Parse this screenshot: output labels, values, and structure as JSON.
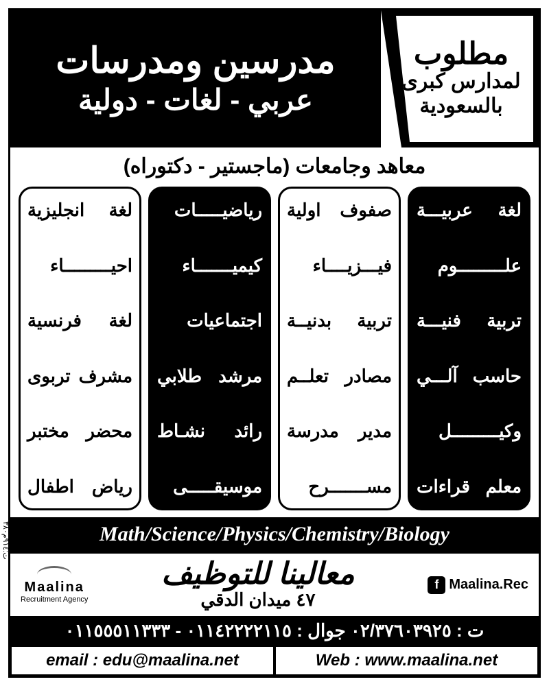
{
  "header": {
    "wanted": "مطلوب",
    "wanted_sub1": "لمدارس كبرى",
    "wanted_sub2": "بالسعودية",
    "teachers": "مدرسين ومدرسات",
    "types": "عربي - لغات - دولية"
  },
  "qualifications": "معاهد وجامعات (ماجستير - دكتوراه)",
  "columns": [
    {
      "style": "black",
      "items": [
        "لغة عربيـــة",
        "علـــــــــوم",
        "تربية فنيـــة",
        "حاسب آلـــي",
        "وكيـــــــــل",
        "معلم قراءات"
      ]
    },
    {
      "style": "white",
      "items": [
        "صفوف اولية",
        "فيـــزيــــاء",
        "تربية بدنيــة",
        "مصادر تعلــم",
        "مدير مدرسة",
        "مســـــــرح"
      ]
    },
    {
      "style": "black",
      "items": [
        "رياضيـــــات",
        "كيميـــــــاء",
        "اجتماعيات",
        "مرشد طلابي",
        "رائد نشـاط",
        "موسيقـــــى"
      ]
    },
    {
      "style": "white",
      "items": [
        "لغة انجليزية",
        "احيـــــــــاء",
        "لغة فرنسية",
        "مشرف تربوى",
        "محضر مختبر",
        "رياض اطفال"
      ]
    }
  ],
  "english_subjects": "Math/Science/Physics/Chemistry/Biology",
  "company": {
    "logo_name": "Maalina",
    "logo_tagline": "Recruitment Agency",
    "arabic_name": "معالينا للتوظيف",
    "address": "٤٧ ميدان الدقي",
    "fb": "Maalina.Rec"
  },
  "phones": "ت : ٠٢/٣٧٦٠٣٩٢٥ جوال : ٠١١٤٢٢٢٢١١٥ - ٠١١٥٥٥١١٣٣٣",
  "contacts": {
    "email_label": "email : edu@maalina.net",
    "web_label": "Web : www.maalina.net"
  },
  "side_code": "ت:٩١٤م٣٨٠"
}
